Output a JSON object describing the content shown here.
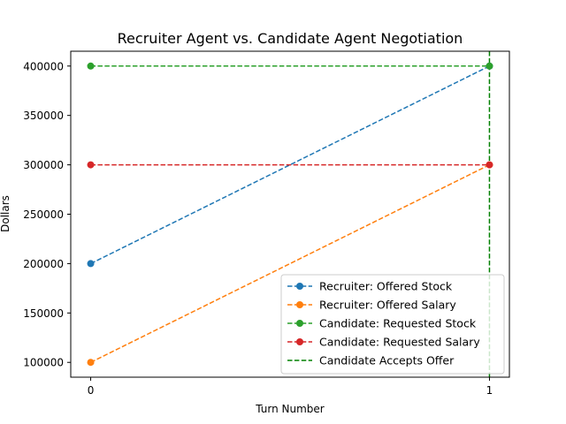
{
  "chart_data": {
    "type": "line",
    "title": "Recruiter Agent vs. Candidate Agent Negotiation",
    "xlabel": "Turn Number",
    "ylabel": "Dollars",
    "x": [
      0,
      1
    ],
    "xticks": [
      "0",
      "1"
    ],
    "xlim": [
      -0.05,
      1.05
    ],
    "yticks": [
      100000,
      150000,
      200000,
      250000,
      300000,
      350000,
      400000
    ],
    "ylim": [
      85000,
      415000
    ],
    "grid": false,
    "legend_position": "lower-right",
    "series": [
      {
        "name": "Recruiter: Offered Stock",
        "values": [
          200000,
          400000
        ],
        "color": "#1f77b4",
        "style": "dashed",
        "marker": "circle"
      },
      {
        "name": "Recruiter: Offered Salary",
        "values": [
          100000,
          300000
        ],
        "color": "#ff7f0e",
        "style": "dashed",
        "marker": "circle"
      },
      {
        "name": "Candidate: Requested Stock",
        "values": [
          400000,
          400000
        ],
        "color": "#2ca02c",
        "style": "dashed",
        "marker": "circle"
      },
      {
        "name": "Candidate: Requested Salary",
        "values": [
          300000,
          300000
        ],
        "color": "#d62728",
        "style": "dashed",
        "marker": "circle"
      }
    ],
    "vlines": [
      {
        "name": "Candidate Accepts Offer",
        "x": 1,
        "color": "#008000",
        "style": "dashed"
      }
    ]
  }
}
